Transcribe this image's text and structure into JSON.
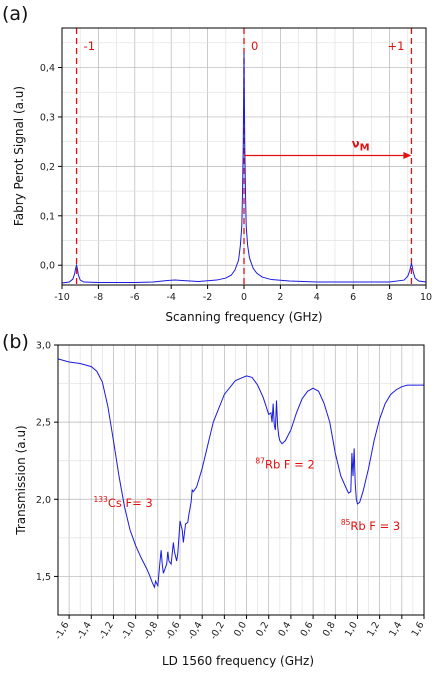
{
  "chart_data": [
    {
      "panel_label": "(a)",
      "type": "line",
      "xlabel": "Scanning frequency (GHz)",
      "ylabel": "Fabry Perot Signal (a.u)",
      "xlim": [
        -10,
        10
      ],
      "ylim": [
        -0.04,
        0.48
      ],
      "xticks": [
        -10,
        -8,
        -6,
        -4,
        -2,
        0,
        2,
        4,
        6,
        8,
        10
      ],
      "xtick_labels": [
        "-10",
        "-8",
        "-6",
        "-4",
        "-2",
        "0",
        "2",
        "4",
        "6",
        "8",
        "10"
      ],
      "yticks": [
        0.0,
        0.1,
        0.2,
        0.3,
        0.4
      ],
      "ytick_labels": [
        "0,0",
        "0,1",
        "0,2",
        "0,3",
        "0,4"
      ],
      "grid": true,
      "line_color": "#1a1adf",
      "annotation_color": "#e01010",
      "series": [
        {
          "x": [
            -10.0,
            -9.6,
            -9.4,
            -9.3,
            -9.25,
            -9.2,
            -9.15,
            -9.1,
            -9.0,
            -8.8,
            -8.0,
            -6.0,
            -5.0,
            -4.2,
            -3.8,
            -3.4,
            -2.5,
            -1.5,
            -1.0,
            -0.7,
            -0.5,
            -0.3,
            -0.2,
            -0.12,
            -0.08,
            -0.04,
            0.0,
            0.04,
            0.08,
            0.12,
            0.2,
            0.3,
            0.5,
            0.7,
            1.0,
            1.5,
            2.5,
            4.0,
            6.0,
            8.0,
            8.8,
            9.0,
            9.1,
            9.15,
            9.2,
            9.25,
            9.3,
            9.4,
            9.6,
            10.0
          ],
          "y": [
            -0.036,
            -0.034,
            -0.028,
            -0.016,
            -0.006,
            0.0,
            -0.008,
            -0.02,
            -0.03,
            -0.034,
            -0.035,
            -0.035,
            -0.034,
            -0.031,
            -0.03,
            -0.031,
            -0.033,
            -0.03,
            -0.026,
            -0.02,
            -0.01,
            0.01,
            0.04,
            0.08,
            0.15,
            0.25,
            0.43,
            0.25,
            0.15,
            0.08,
            0.04,
            0.015,
            -0.006,
            -0.016,
            -0.024,
            -0.029,
            -0.032,
            -0.034,
            -0.034,
            -0.034,
            -0.03,
            -0.022,
            -0.012,
            -0.004,
            0.004,
            -0.004,
            -0.014,
            -0.026,
            -0.032,
            -0.034
          ]
        }
      ],
      "vlines": [
        {
          "x": -9.2,
          "label": "-1"
        },
        {
          "x": 0.0,
          "label": "0"
        },
        {
          "x": 9.2,
          "label": "+1"
        }
      ],
      "arrow": {
        "x_from": 0.0,
        "x_to": 9.2,
        "y": 0.222,
        "label": "ν",
        "label_sub": "M"
      }
    },
    {
      "panel_label": "(b)",
      "type": "line",
      "xlabel": "LD 1560 frequency (GHz)",
      "ylabel": "Transmission (a.u)",
      "xlim": [
        -1.7,
        1.6
      ],
      "ylim": [
        1.25,
        3.0
      ],
      "xticks": [
        -1.6,
        -1.4,
        -1.2,
        -1.0,
        -0.8,
        -0.6,
        -0.4,
        -0.2,
        0.0,
        0.2,
        0.4,
        0.6,
        0.8,
        1.0,
        1.2,
        1.4,
        1.6
      ],
      "xtick_labels": [
        "-1,6",
        "-1,4",
        "-1,2",
        "-1,0",
        "-0,8",
        "-0,6",
        "-0,4",
        "-0,2",
        "0,0",
        "0,2",
        "0,4",
        "0,6",
        "0,8",
        "1,0",
        "1,2",
        "1,4",
        "1,6"
      ],
      "yticks": [
        1.5,
        2.0,
        2.5,
        3.0
      ],
      "ytick_labels": [
        "1,5",
        "2,0",
        "2,5",
        "3,0"
      ],
      "grid": true,
      "line_color": "#1a1adf",
      "annotation_color": "#e01010",
      "series": [
        {
          "x": [
            -1.7,
            -1.6,
            -1.5,
            -1.4,
            -1.35,
            -1.3,
            -1.25,
            -1.2,
            -1.15,
            -1.1,
            -1.05,
            -1.0,
            -0.95,
            -0.9,
            -0.87,
            -0.85,
            -0.83,
            -0.82,
            -0.8,
            -0.78,
            -0.77,
            -0.76,
            -0.75,
            -0.73,
            -0.72,
            -0.71,
            -0.7,
            -0.68,
            -0.67,
            -0.66,
            -0.65,
            -0.63,
            -0.62,
            -0.61,
            -0.6,
            -0.58,
            -0.57,
            -0.56,
            -0.55,
            -0.53,
            -0.52,
            -0.5,
            -0.49,
            -0.48,
            -0.47,
            -0.45,
            -0.4,
            -0.35,
            -0.3,
            -0.2,
            -0.1,
            0.0,
            0.05,
            0.1,
            0.15,
            0.2,
            0.22,
            0.23,
            0.24,
            0.25,
            0.26,
            0.27,
            0.28,
            0.29,
            0.3,
            0.32,
            0.35,
            0.4,
            0.45,
            0.5,
            0.55,
            0.6,
            0.65,
            0.7,
            0.75,
            0.8,
            0.85,
            0.9,
            0.92,
            0.94,
            0.95,
            0.96,
            0.97,
            0.98,
            0.99,
            1.0,
            1.02,
            1.05,
            1.1,
            1.15,
            1.2,
            1.25,
            1.3,
            1.35,
            1.4,
            1.45,
            1.5,
            1.55,
            1.6
          ],
          "y": [
            2.91,
            2.89,
            2.88,
            2.86,
            2.83,
            2.76,
            2.6,
            2.38,
            2.15,
            1.95,
            1.8,
            1.7,
            1.62,
            1.55,
            1.5,
            1.46,
            1.43,
            1.47,
            1.44,
            1.6,
            1.67,
            1.58,
            1.52,
            1.56,
            1.58,
            1.66,
            1.6,
            1.58,
            1.65,
            1.72,
            1.66,
            1.6,
            1.65,
            1.75,
            1.86,
            1.8,
            1.72,
            1.78,
            1.84,
            1.85,
            1.9,
            1.98,
            2.06,
            2.05,
            2.06,
            2.08,
            2.2,
            2.35,
            2.5,
            2.68,
            2.77,
            2.8,
            2.79,
            2.74,
            2.66,
            2.55,
            2.56,
            2.5,
            2.62,
            2.48,
            2.45,
            2.64,
            2.48,
            2.41,
            2.38,
            2.36,
            2.38,
            2.45,
            2.56,
            2.65,
            2.7,
            2.72,
            2.7,
            2.62,
            2.5,
            2.3,
            2.15,
            2.07,
            2.04,
            2.05,
            2.3,
            2.15,
            2.33,
            2.1,
            2.0,
            1.97,
            1.98,
            2.05,
            2.2,
            2.38,
            2.52,
            2.62,
            2.68,
            2.71,
            2.73,
            2.74,
            2.74,
            2.74,
            2.74
          ]
        }
      ],
      "annotations": [
        {
          "pre": "133",
          "text": "Cs F= 3",
          "x": -1.38,
          "y": 1.95
        },
        {
          "pre": "87",
          "text": "Rb F = 2",
          "x": 0.08,
          "y": 2.2
        },
        {
          "pre": "85",
          "text": "Rb F = 3",
          "x": 0.85,
          "y": 1.8
        }
      ]
    }
  ]
}
